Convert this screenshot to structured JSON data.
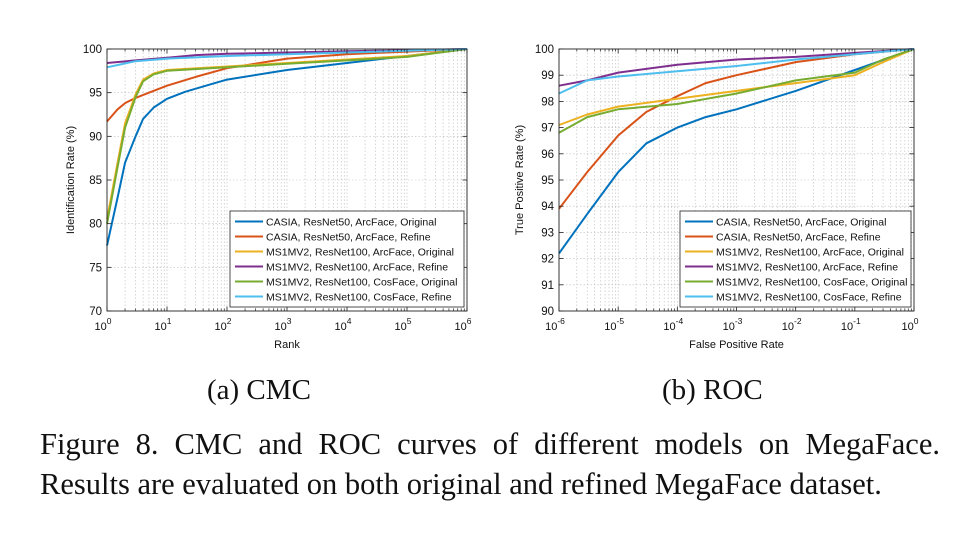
{
  "subcaptions": {
    "a": "(a)  CMC",
    "b": "(b)  ROC"
  },
  "caption": "Figure 8. CMC and ROC curves of different models on MegaFace. Results are evaluated on both original and refined MegaFace dataset.",
  "colors": {
    "casia_original": "#0072bd",
    "casia_refine": "#d95319",
    "ms1mv2_arcface_original": "#edb120",
    "ms1mv2_arcface_refine": "#7e2f8e",
    "ms1mv2_cosface_original": "#77ac30",
    "ms1mv2_cosface_refine": "#4dbeee"
  },
  "chart_data": [
    {
      "type": "line",
      "xlabel": "Rank",
      "ylabel": "Identification Rate (%)",
      "xscale": "log",
      "xlim": [
        1,
        1000000
      ],
      "ylim": [
        70,
        100
      ],
      "xticks": [
        1,
        10,
        100,
        1000,
        10000,
        100000,
        1000000
      ],
      "xtick_labels": [
        [
          "10",
          "0"
        ],
        [
          "10",
          "1"
        ],
        [
          "10",
          "2"
        ],
        [
          "10",
          "3"
        ],
        [
          "10",
          "4"
        ],
        [
          "10",
          "5"
        ],
        [
          "10",
          "6"
        ]
      ],
      "yticks": [
        70,
        75,
        80,
        85,
        90,
        95,
        100
      ],
      "ytick_labels": [
        "70",
        "75",
        "80",
        "85",
        "90",
        "95",
        "100"
      ],
      "grid": true,
      "legend_position": "bottom-right",
      "series": [
        {
          "name": "CASIA, ResNet50, ArcFace, Original",
          "color": "#0072bd",
          "x": [
            1,
            1.5,
            2,
            3,
            4,
            6,
            10,
            20,
            50,
            100,
            1000,
            10000,
            100000,
            1000000
          ],
          "y": [
            77.5,
            83,
            87,
            90,
            92,
            93.3,
            94.3,
            95.1,
            95.9,
            96.5,
            97.6,
            98.4,
            99.2,
            100
          ]
        },
        {
          "name": "CASIA, ResNet50, ArcFace, Refine",
          "color": "#d95319",
          "x": [
            1,
            1.5,
            2,
            3,
            5,
            10,
            30,
            100,
            1000,
            10000,
            100000,
            1000000
          ],
          "y": [
            91.7,
            93.1,
            93.8,
            94.4,
            95.0,
            95.8,
            96.8,
            97.8,
            98.9,
            99.4,
            99.7,
            100
          ]
        },
        {
          "name": "MS1MV2, ResNet100, ArcFace, Original",
          "color": "#edb120",
          "x": [
            1,
            1.5,
            2,
            3,
            4,
            6,
            10,
            100,
            1000,
            10000,
            100000,
            1000000
          ],
          "y": [
            80.5,
            87,
            91.5,
            94.8,
            96.5,
            97.2,
            97.6,
            98.0,
            98.4,
            98.8,
            99.2,
            100
          ]
        },
        {
          "name": "MS1MV2, ResNet100, ArcFace, Refine",
          "color": "#7e2f8e",
          "x": [
            1,
            3,
            10,
            30,
            100,
            1000,
            10000,
            100000,
            1000000
          ],
          "y": [
            98.4,
            98.7,
            99.0,
            99.3,
            99.45,
            99.6,
            99.75,
            99.85,
            100
          ]
        },
        {
          "name": "MS1MV2, ResNet100, CosFace, Original",
          "color": "#77ac30",
          "x": [
            1,
            1.5,
            2,
            3,
            4,
            6,
            10,
            100,
            1000,
            10000,
            100000,
            1000000
          ],
          "y": [
            80.0,
            86.5,
            91.0,
            94.5,
            96.3,
            97.1,
            97.5,
            97.9,
            98.3,
            98.7,
            99.1,
            100
          ]
        },
        {
          "name": "MS1MV2, ResNet100, CosFace, Refine",
          "color": "#4dbeee",
          "x": [
            1,
            3,
            10,
            100,
            1000,
            10000,
            100000,
            1000000
          ],
          "y": [
            97.9,
            98.6,
            98.9,
            99.2,
            99.4,
            99.6,
            99.8,
            100
          ]
        }
      ]
    },
    {
      "type": "line",
      "xlabel": "False Positive Rate",
      "ylabel": "True Positive Rate (%)",
      "xscale": "log",
      "xlim": [
        1e-06,
        1
      ],
      "ylim": [
        90,
        100
      ],
      "xticks": [
        1e-06,
        1e-05,
        0.0001,
        0.001,
        0.01,
        0.1,
        1
      ],
      "xtick_labels": [
        [
          "10",
          "-6"
        ],
        [
          "10",
          "-5"
        ],
        [
          "10",
          "-4"
        ],
        [
          "10",
          "-3"
        ],
        [
          "10",
          "-2"
        ],
        [
          "10",
          "-1"
        ],
        [
          "10",
          "0"
        ]
      ],
      "yticks": [
        90,
        91,
        92,
        93,
        94,
        95,
        96,
        97,
        98,
        99,
        100
      ],
      "ytick_labels": [
        "90",
        "91",
        "92",
        "93",
        "94",
        "95",
        "96",
        "97",
        "98",
        "99",
        "100"
      ],
      "grid": true,
      "legend_position": "bottom-right",
      "series": [
        {
          "name": "CASIA, ResNet50, ArcFace, Original",
          "color": "#0072bd",
          "x": [
            1e-06,
            3e-06,
            1e-05,
            3e-05,
            0.0001,
            0.0003,
            0.001,
            0.01,
            0.1,
            1
          ],
          "y": [
            92.2,
            93.7,
            95.3,
            96.4,
            97.0,
            97.4,
            97.7,
            98.4,
            99.2,
            100
          ]
        },
        {
          "name": "CASIA, ResNet50, ArcFace, Refine",
          "color": "#d95319",
          "x": [
            1e-06,
            3e-06,
            1e-05,
            3e-05,
            0.0001,
            0.0003,
            0.001,
            0.01,
            0.1,
            1
          ],
          "y": [
            93.9,
            95.3,
            96.7,
            97.6,
            98.2,
            98.7,
            99.0,
            99.5,
            99.8,
            100
          ]
        },
        {
          "name": "MS1MV2, ResNet100, ArcFace, Original",
          "color": "#edb120",
          "x": [
            1e-06,
            3e-06,
            1e-05,
            0.0001,
            0.001,
            0.01,
            0.1,
            0.3,
            1
          ],
          "y": [
            97.1,
            97.5,
            97.8,
            98.1,
            98.4,
            98.7,
            99.0,
            99.5,
            100
          ]
        },
        {
          "name": "MS1MV2, ResNet100, ArcFace, Refine",
          "color": "#7e2f8e",
          "x": [
            1e-06,
            3e-06,
            1e-05,
            0.0001,
            0.001,
            0.01,
            0.1,
            1
          ],
          "y": [
            98.6,
            98.8,
            99.1,
            99.4,
            99.6,
            99.7,
            99.85,
            100
          ]
        },
        {
          "name": "MS1MV2, ResNet100, CosFace, Original",
          "color": "#77ac30",
          "x": [
            1e-06,
            3e-06,
            1e-05,
            0.0001,
            0.001,
            0.01,
            0.1,
            0.3,
            1
          ],
          "y": [
            96.8,
            97.4,
            97.7,
            97.9,
            98.3,
            98.8,
            99.1,
            99.6,
            100
          ]
        },
        {
          "name": "MS1MV2, ResNet100, CosFace, Refine",
          "color": "#4dbeee",
          "x": [
            1e-06,
            3e-06,
            1e-05,
            0.0001,
            0.001,
            0.01,
            0.1,
            1
          ],
          "y": [
            98.3,
            98.8,
            98.95,
            99.15,
            99.35,
            99.6,
            99.8,
            100
          ]
        }
      ]
    }
  ]
}
